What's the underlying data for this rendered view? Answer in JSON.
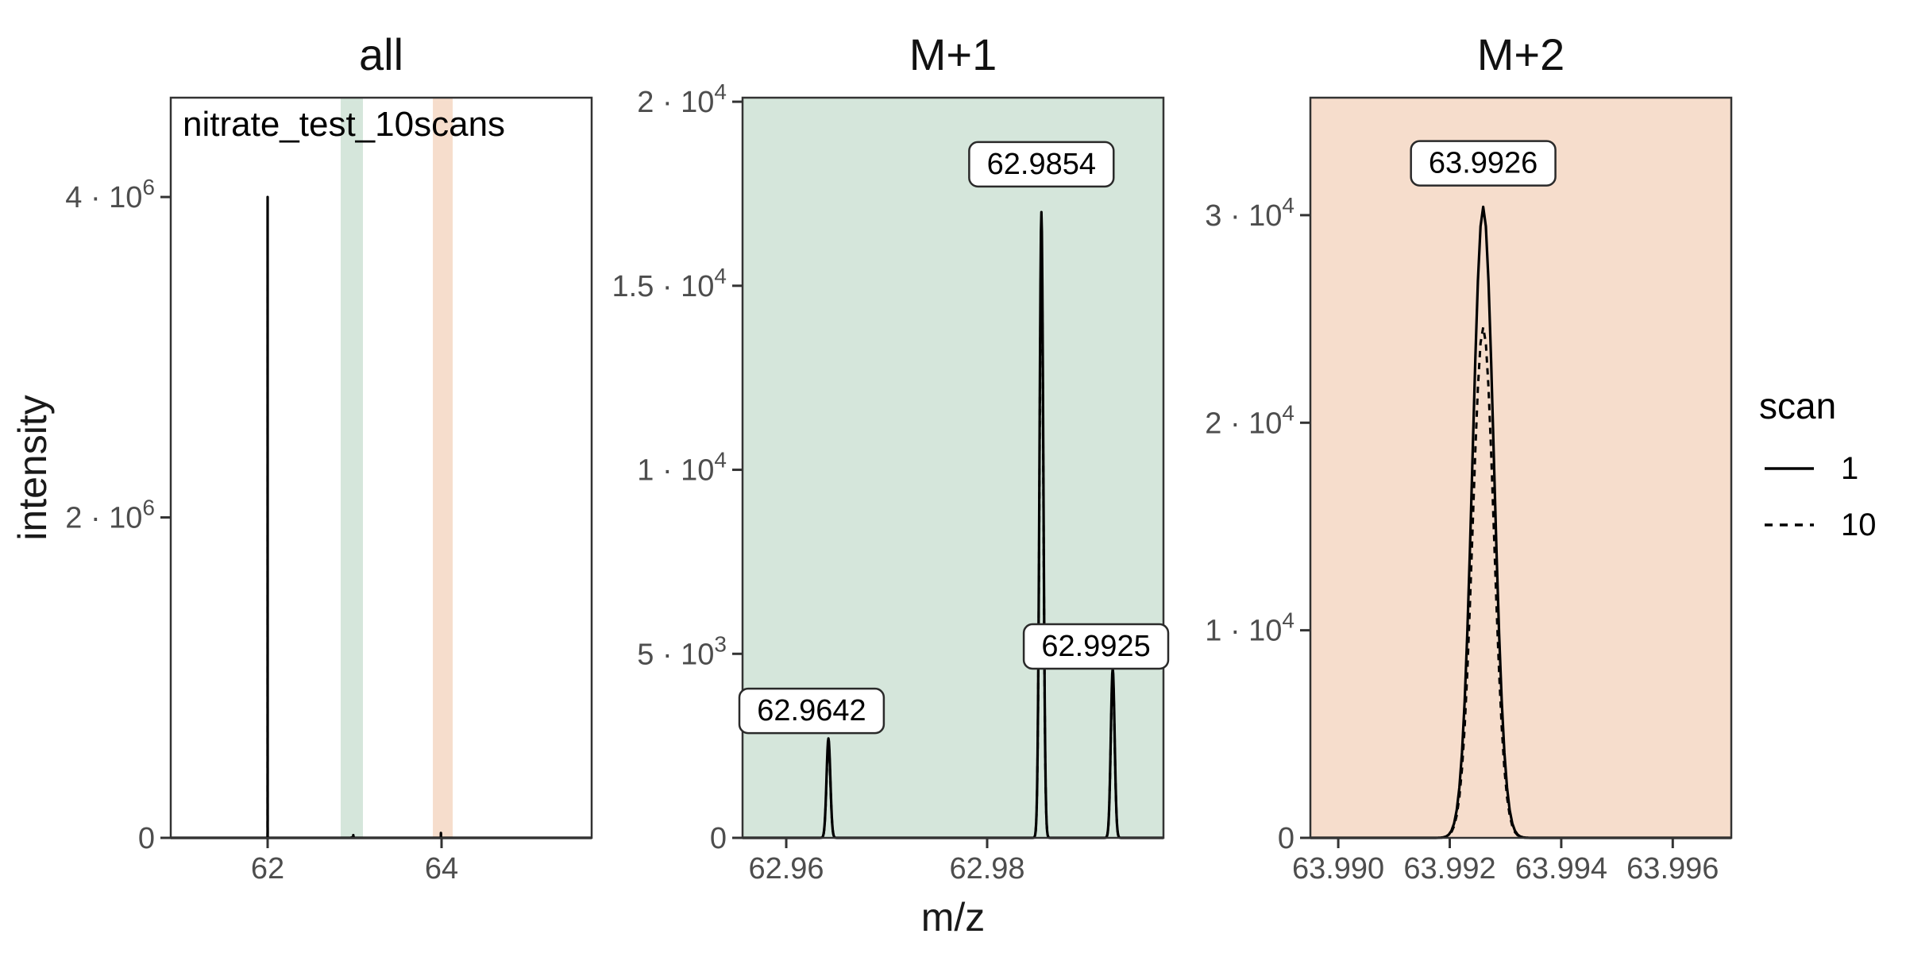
{
  "figure": {
    "x_label": "m/z",
    "y_label": "intensity",
    "legend": {
      "title": "scan",
      "entries": [
        {
          "label": "1",
          "linetype": "solid"
        },
        {
          "label": "10",
          "linetype": "dashed"
        }
      ]
    },
    "colors": {
      "m1_fill": "#d5e6db",
      "m2_fill": "#f6ddcc",
      "axis_text": "#4d4d4d",
      "axis_line": "#333333",
      "peak_line": "#000000",
      "label_box_fill": "#ffffff",
      "label_box_border": "#2a2a2a",
      "panel_bg": "#ffffff"
    }
  },
  "chart_data": [
    {
      "panel_id": "all",
      "type": "line",
      "title": "all",
      "annotation": "nitrate_test_10scans",
      "xlim": [
        60.886,
        65.726
      ],
      "ylim": [
        0,
        4620000
      ],
      "x_ticks": [
        {
          "v": 62,
          "label": "62"
        },
        {
          "v": 64,
          "label": "64"
        }
      ],
      "y_ticks": [
        {
          "v": 0,
          "label": "0"
        },
        {
          "v": 2000000,
          "label": "2 · 10^6"
        },
        {
          "v": 4000000,
          "label": "4 · 10^6"
        }
      ],
      "fill": "#ffffff",
      "bands": [
        {
          "x0": 62.84,
          "x1": 63.096,
          "color_key": "m1_fill"
        },
        {
          "x0": 63.9,
          "x1": 64.128,
          "color_key": "m2_fill"
        }
      ],
      "peak_sigma": 0.00019,
      "series": [
        {
          "name": "1",
          "linetype": "solid",
          "peaks": [
            {
              "mz": 62.0,
              "intensity": 4000000
            },
            {
              "mz": 62.9642,
              "intensity": 2700
            },
            {
              "mz": 62.9854,
              "intensity": 17000
            },
            {
              "mz": 62.9925,
              "intensity": 4600
            },
            {
              "mz": 63.9926,
              "intensity": 30400
            }
          ]
        },
        {
          "name": "10",
          "linetype": "dashed",
          "peaks": [
            {
              "mz": 62.0,
              "intensity": 3970000
            },
            {
              "mz": 62.9642,
              "intensity": 2600
            },
            {
              "mz": 62.9854,
              "intensity": 16300
            },
            {
              "mz": 62.9925,
              "intensity": 4450
            },
            {
              "mz": 63.9926,
              "intensity": 24600
            }
          ]
        }
      ],
      "peak_labels": []
    },
    {
      "panel_id": "m1",
      "type": "line",
      "title": "M+1",
      "annotation": "",
      "xlim": [
        62.95565,
        62.99755
      ],
      "ylim": [
        0,
        20110
      ],
      "x_ticks": [
        {
          "v": 62.96,
          "label": "62.96"
        },
        {
          "v": 62.98,
          "label": "62.98"
        }
      ],
      "y_ticks": [
        {
          "v": 0,
          "label": "0"
        },
        {
          "v": 5000,
          "label": "5 · 10^3"
        },
        {
          "v": 10000,
          "label": "1 · 10^4"
        },
        {
          "v": 15000,
          "label": "1.5 · 10^4"
        },
        {
          "v": 20000,
          "label": "2 · 10^4"
        }
      ],
      "fill": "#d5e6db",
      "bands": [],
      "peak_sigma": 0.00019,
      "series": [
        {
          "name": "1",
          "linetype": "solid",
          "peaks": [
            {
              "mz": 62.9642,
              "intensity": 2700
            },
            {
              "mz": 62.9854,
              "intensity": 17000
            },
            {
              "mz": 62.9925,
              "intensity": 4600
            }
          ]
        },
        {
          "name": "10",
          "linetype": "dashed",
          "peaks": [
            {
              "mz": 62.9642,
              "intensity": 2600
            },
            {
              "mz": 62.9854,
              "intensity": 16300
            },
            {
              "mz": 62.9925,
              "intensity": 4450
            }
          ]
        }
      ],
      "peak_labels": [
        {
          "text": "62.9642",
          "x": 62.9642,
          "y": 3450,
          "align": "panel-left"
        },
        {
          "text": "62.9854",
          "x": 62.9854,
          "y": 18300,
          "align": "center"
        },
        {
          "text": "62.9925",
          "x": 62.9925,
          "y": 5200,
          "align": "panel-right"
        }
      ]
    },
    {
      "panel_id": "m2",
      "type": "line",
      "title": "M+2",
      "annotation": "",
      "xlim": [
        63.9895,
        63.99705
      ],
      "ylim": [
        0,
        35660
      ],
      "x_ticks": [
        {
          "v": 63.99,
          "label": "63.990"
        },
        {
          "v": 63.992,
          "label": "63.992"
        },
        {
          "v": 63.994,
          "label": "63.994"
        },
        {
          "v": 63.996,
          "label": "63.996"
        }
      ],
      "y_ticks": [
        {
          "v": 0,
          "label": "0"
        },
        {
          "v": 10000,
          "label": "1 · 10^4"
        },
        {
          "v": 20000,
          "label": "2 · 10^4"
        },
        {
          "v": 30000,
          "label": "3 · 10^4"
        }
      ],
      "fill": "#f6ddcc",
      "bands": [],
      "peak_sigma": 0.00019,
      "series": [
        {
          "name": "1",
          "linetype": "solid",
          "peaks": [
            {
              "mz": 63.9926,
              "intensity": 30400
            }
          ]
        },
        {
          "name": "10",
          "linetype": "dashed",
          "peaks": [
            {
              "mz": 63.9926,
              "intensity": 24600
            }
          ]
        }
      ],
      "peak_labels": [
        {
          "text": "63.9926",
          "x": 63.9926,
          "y": 32500,
          "align": "center"
        }
      ]
    }
  ]
}
